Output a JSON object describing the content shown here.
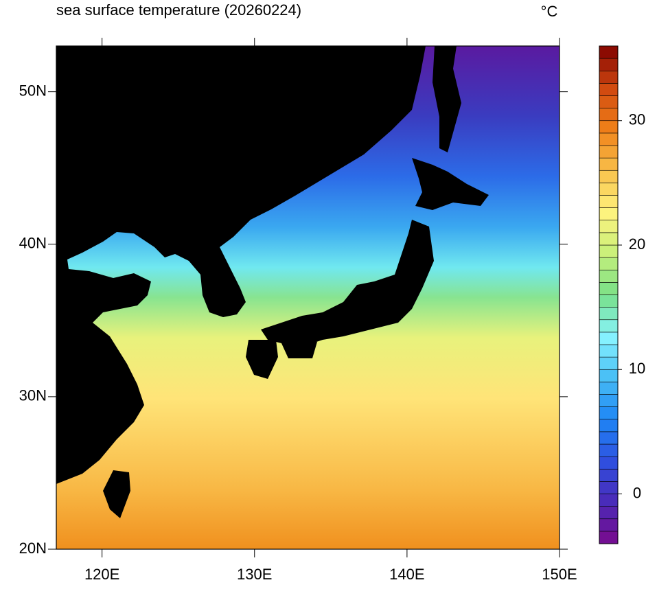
{
  "title": "sea surface temperature (20260224)",
  "unit": "°C",
  "map": {
    "xlim": [
      117,
      150
    ],
    "ylim": [
      20,
      53
    ],
    "xticks": [
      {
        "value": 120,
        "label": "120E"
      },
      {
        "value": 130,
        "label": "130E"
      },
      {
        "value": 140,
        "label": "140E"
      },
      {
        "value": 150,
        "label": "150E"
      }
    ],
    "yticks": [
      {
        "value": 20,
        "label": "20N"
      },
      {
        "value": 30,
        "label": "30N"
      },
      {
        "value": 40,
        "label": "40N"
      },
      {
        "value": 50,
        "label": "50N"
      }
    ]
  },
  "colorbar": {
    "lim": [
      -4,
      36
    ],
    "step": 1,
    "ticks": [
      0,
      10,
      20,
      30
    ],
    "colors": [
      "#7a0a8c",
      "#4a2ab8",
      "#2f50e0",
      "#1e86f5",
      "#48bef5",
      "#88f4ff",
      "#78e088",
      "#c8f07a",
      "#fff37e",
      "#f8c04a",
      "#f08018",
      "#d04810",
      "#800000"
    ]
  }
}
